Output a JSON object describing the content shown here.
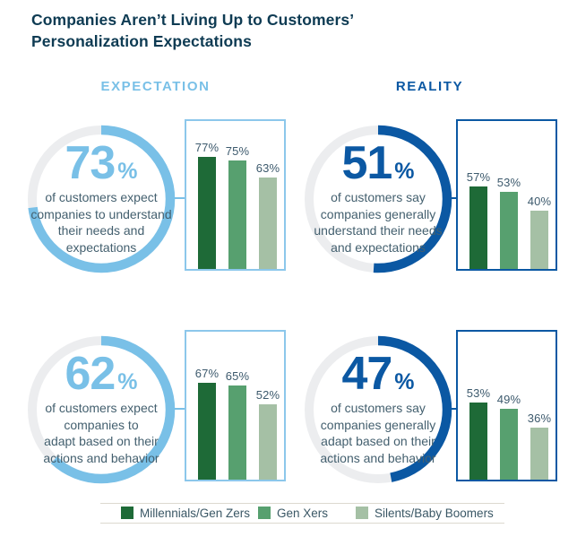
{
  "title": "Companies Aren’t Living Up to Customers’\nPersonalization Expectations",
  "columns": [
    {
      "label": "EXPECTATION",
      "color": "#6fbbe6"
    },
    {
      "label": "REALITY",
      "color": "#0b58a3"
    }
  ],
  "colors": {
    "expectation_accent": "#79c0e7",
    "reality_accent": "#0b58a3",
    "ring_track": "#ecedef",
    "expectation_box_border": "#8cc7eb",
    "reality_box_border": "#0b58a3",
    "title_text": "#0e3b53",
    "body_text": "#44606f"
  },
  "bar_axis_max": 102,
  "legend": {
    "items": [
      {
        "label": "Millennials/Gen Zers",
        "color": "#1e6a37"
      },
      {
        "label": "Gen Xers",
        "color": "#57a06f"
      },
      {
        "label": "Silents/Baby Boomers",
        "color": "#a5c0a5"
      }
    ]
  },
  "panels": [
    {
      "column": "EXPECTATION",
      "percent": 73,
      "percent_label": "73",
      "percent_symbol": "%",
      "description": "of customers expect\ncompanies to understand\ntheir needs and\nexpectations",
      "accent": "#79c0e7",
      "box_border": "#8cc7eb",
      "bars": [
        77,
        75,
        63
      ],
      "bar_labels": [
        "77%",
        "75%",
        "63%"
      ]
    },
    {
      "column": "REALITY",
      "percent": 51,
      "percent_label": "51",
      "percent_symbol": "%",
      "description": "of customers say\ncompanies generally\nunderstand their needs\nand expectations",
      "accent": "#0b58a3",
      "box_border": "#0b58a3",
      "bars": [
        57,
        53,
        40
      ],
      "bar_labels": [
        "57%",
        "53%",
        "40%"
      ]
    },
    {
      "column": "EXPECTATION",
      "percent": 62,
      "percent_label": "62",
      "percent_symbol": "%",
      "description": "of customers expect\ncompanies to\nadapt based on their\nactions and behavior",
      "accent": "#79c0e7",
      "box_border": "#8cc7eb",
      "bars": [
        67,
        65,
        52
      ],
      "bar_labels": [
        "67%",
        "65%",
        "52%"
      ]
    },
    {
      "column": "REALITY",
      "percent": 47,
      "percent_label": "47",
      "percent_symbol": "%",
      "description": "of customers say\ncompanies generally\nadapt based on their\nactions and behavior",
      "accent": "#0b58a3",
      "box_border": "#0b58a3",
      "bars": [
        53,
        49,
        36
      ],
      "bar_labels": [
        "53%",
        "49%",
        "36%"
      ]
    }
  ],
  "chart_data": [
    {
      "type": "bar",
      "title": "EXPECTATION: 73% of customers expect companies to understand their needs and expectations",
      "categories": [
        "Millennials/Gen Zers",
        "Gen Xers",
        "Silents/Baby Boomers"
      ],
      "values": [
        77,
        75,
        63
      ],
      "xlabel": "",
      "ylabel": "",
      "ylim": [
        0,
        102
      ],
      "grid": false,
      "legend_position": "bottom",
      "donut": {
        "type": "pie",
        "values": [
          73,
          27
        ],
        "label": "73%"
      }
    },
    {
      "type": "bar",
      "title": "REALITY: 51% of customers say companies generally understand their needs and expectations",
      "categories": [
        "Millennials/Gen Zers",
        "Gen Xers",
        "Silents/Baby Boomers"
      ],
      "values": [
        57,
        53,
        40
      ],
      "xlabel": "",
      "ylabel": "",
      "ylim": [
        0,
        102
      ],
      "grid": false,
      "legend_position": "bottom",
      "donut": {
        "type": "pie",
        "values": [
          51,
          49
        ],
        "label": "51%"
      }
    },
    {
      "type": "bar",
      "title": "EXPECTATION: 62% of customers expect companies to adapt based on their actions and behavior",
      "categories": [
        "Millennials/Gen Zers",
        "Gen Xers",
        "Silents/Baby Boomers"
      ],
      "values": [
        67,
        65,
        52
      ],
      "xlabel": "",
      "ylabel": "",
      "ylim": [
        0,
        102
      ],
      "grid": false,
      "legend_position": "bottom",
      "donut": {
        "type": "pie",
        "values": [
          62,
          38
        ],
        "label": "62%"
      }
    },
    {
      "type": "bar",
      "title": "REALITY: 47% of customers say companies generally adapt based on their actions and behavior",
      "categories": [
        "Millennials/Gen Zers",
        "Gen Xers",
        "Silents/Baby Boomers"
      ],
      "values": [
        53,
        49,
        36
      ],
      "xlabel": "",
      "ylabel": "",
      "ylim": [
        0,
        102
      ],
      "grid": false,
      "legend_position": "bottom",
      "donut": {
        "type": "pie",
        "values": [
          47,
          53
        ],
        "label": "47%"
      }
    }
  ]
}
